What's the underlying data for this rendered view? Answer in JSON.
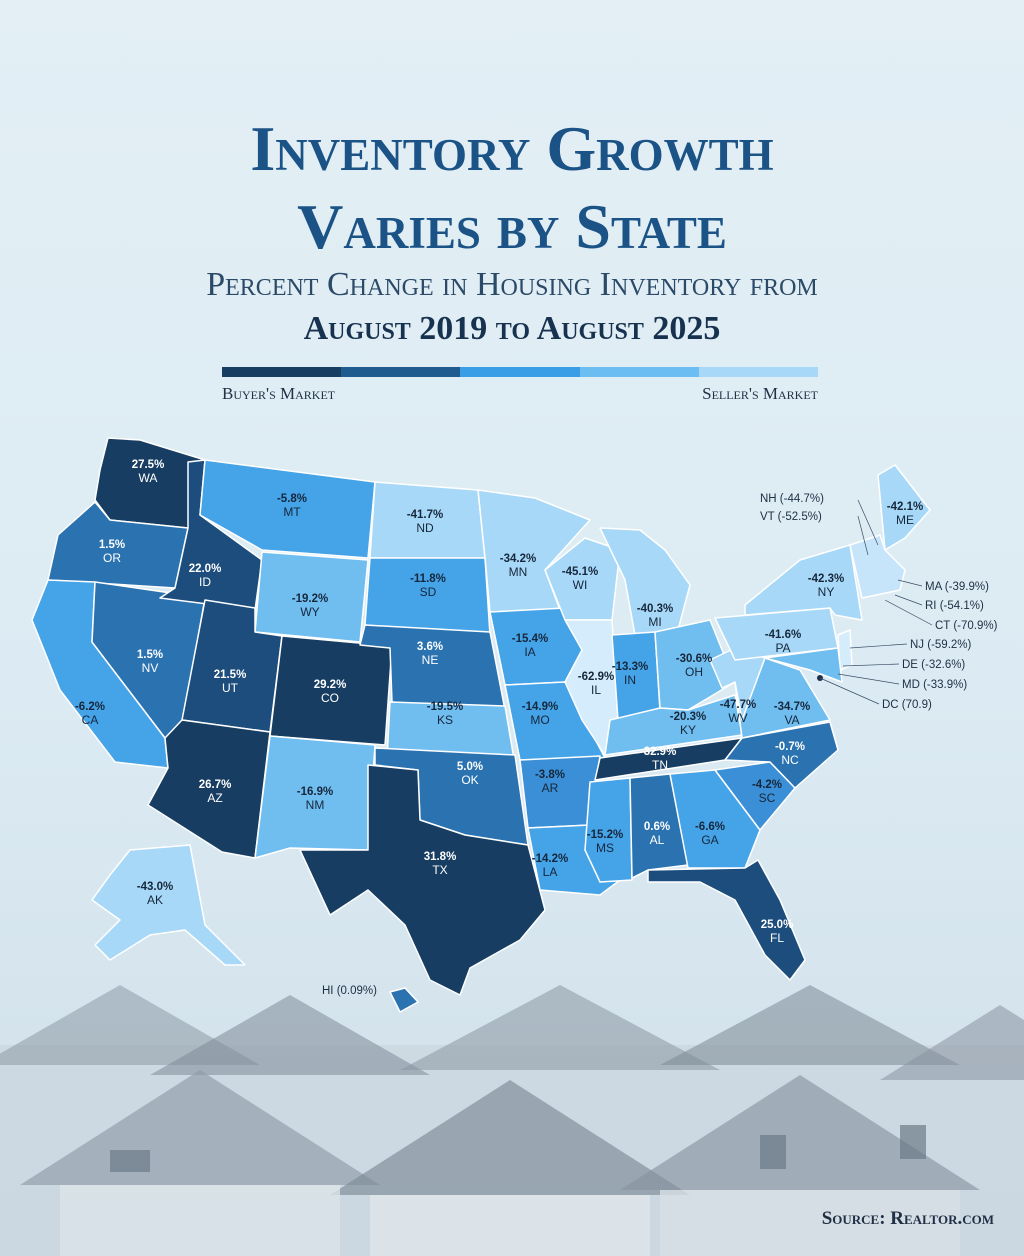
{
  "title_line1": "Inventory Growth",
  "title_line2": "Varies by State",
  "subtitle_line1": "Percent Change in Housing Inventory from",
  "subtitle_line2": "August 2019 to August 2025",
  "legend": {
    "left_label": "Buyer's Market",
    "right_label": "Seller's Market",
    "colors": [
      "#173e62",
      "#1f5b8f",
      "#3a9ee6",
      "#6cbdf2",
      "#a8d8f8"
    ]
  },
  "source": "Source: Realtor.com",
  "map_data": {
    "type": "choropleth",
    "region": "United States",
    "states": [
      {
        "abbr": "WA",
        "value": "27.5%",
        "color": "#173e62"
      },
      {
        "abbr": "OR",
        "value": "1.5%",
        "color": "#2b73b0"
      },
      {
        "abbr": "CA",
        "value": "-6.2%",
        "color": "#45a3e8"
      },
      {
        "abbr": "NV",
        "value": "1.5%",
        "color": "#2b73b0"
      },
      {
        "abbr": "ID",
        "value": "22.0%",
        "color": "#1c4d7c"
      },
      {
        "abbr": "MT",
        "value": "-5.8%",
        "color": "#45a3e8"
      },
      {
        "abbr": "WY",
        "value": "-19.2%",
        "color": "#70bdf0"
      },
      {
        "abbr": "UT",
        "value": "21.5%",
        "color": "#1c4d7c"
      },
      {
        "abbr": "AZ",
        "value": "26.7%",
        "color": "#173e62"
      },
      {
        "abbr": "CO",
        "value": "29.2%",
        "color": "#173e62"
      },
      {
        "abbr": "NM",
        "value": "-16.9%",
        "color": "#70bdf0"
      },
      {
        "abbr": "ND",
        "value": "-41.7%",
        "color": "#a8d8f8"
      },
      {
        "abbr": "SD",
        "value": "-11.8%",
        "color": "#45a3e8"
      },
      {
        "abbr": "NE",
        "value": "3.6%",
        "color": "#2b73b0"
      },
      {
        "abbr": "KS",
        "value": "-19.5%",
        "color": "#70bdf0"
      },
      {
        "abbr": "OK",
        "value": "5.0%",
        "color": "#2b73b0"
      },
      {
        "abbr": "TX",
        "value": "31.8%",
        "color": "#173e62"
      },
      {
        "abbr": "MN",
        "value": "-34.2%",
        "color": "#a8d8f8"
      },
      {
        "abbr": "IA",
        "value": "-15.4%",
        "color": "#45a3e8"
      },
      {
        "abbr": "MO",
        "value": "-14.9%",
        "color": "#45a3e8"
      },
      {
        "abbr": "AR",
        "value": "-3.8%",
        "color": "#3a8fd6"
      },
      {
        "abbr": "LA",
        "value": "-14.2%",
        "color": "#45a3e8"
      },
      {
        "abbr": "WI",
        "value": "-45.1%",
        "color": "#a8d8f8"
      },
      {
        "abbr": "IL",
        "value": "-62.9%",
        "color": "#d4ecfb"
      },
      {
        "abbr": "MI",
        "value": "-40.3%",
        "color": "#a8d8f8"
      },
      {
        "abbr": "IN",
        "value": "-13.3%",
        "color": "#45a3e8"
      },
      {
        "abbr": "OH",
        "value": "-30.6%",
        "color": "#70bdf0"
      },
      {
        "abbr": "KY",
        "value": "-20.3%",
        "color": "#70bdf0"
      },
      {
        "abbr": "TN",
        "value": "32.9%",
        "color": "#173e62"
      },
      {
        "abbr": "MS",
        "value": "-15.2%",
        "color": "#45a3e8"
      },
      {
        "abbr": "AL",
        "value": "0.6%",
        "color": "#2b73b0"
      },
      {
        "abbr": "GA",
        "value": "-6.6%",
        "color": "#45a3e8"
      },
      {
        "abbr": "FL",
        "value": "25.0%",
        "color": "#1c4d7c"
      },
      {
        "abbr": "SC",
        "value": "-4.2%",
        "color": "#3a8fd6"
      },
      {
        "abbr": "NC",
        "value": "-0.7%",
        "color": "#2b73b0"
      },
      {
        "abbr": "VA",
        "value": "-34.7%",
        "color": "#70bdf0"
      },
      {
        "abbr": "WV",
        "value": "-47.7%",
        "color": "#a8d8f8"
      },
      {
        "abbr": "PA",
        "value": "-41.6%",
        "color": "#a8d8f8"
      },
      {
        "abbr": "NY",
        "value": "-42.3%",
        "color": "#a8d8f8"
      },
      {
        "abbr": "ME",
        "value": "-42.1%",
        "color": "#a8d8f8"
      },
      {
        "abbr": "AK",
        "value": "-43.0%",
        "color": "#a8d8f8"
      }
    ],
    "callouts": [
      {
        "text": "NH (-44.7%)"
      },
      {
        "text": "VT (-52.5%)"
      },
      {
        "text": "MA (-39.9%)"
      },
      {
        "text": "RI (-54.1%)"
      },
      {
        "text": "CT (-70.9%)"
      },
      {
        "text": "NJ (-59.2%)"
      },
      {
        "text": "DE (-32.6%)"
      },
      {
        "text": "MD (-33.9%)"
      },
      {
        "text": "DC (70.9)"
      },
      {
        "text": "HI (0.09%)"
      }
    ]
  }
}
